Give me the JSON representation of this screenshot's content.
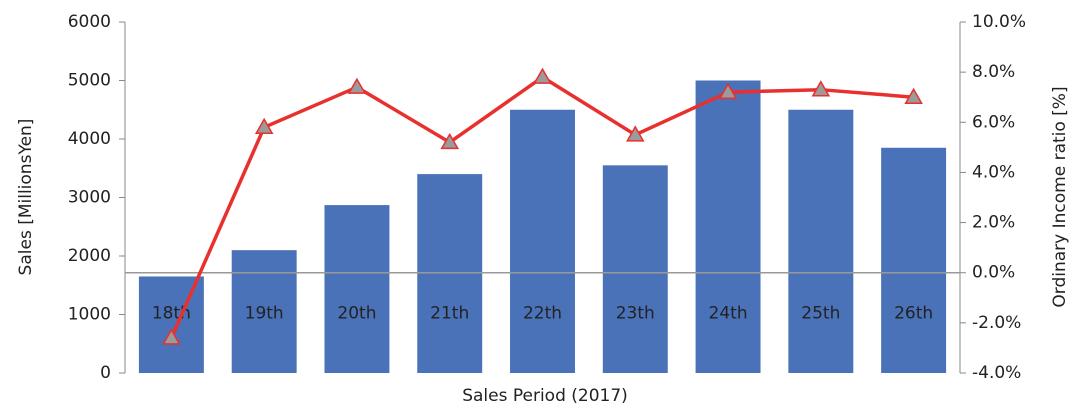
{
  "chart_data": {
    "type": "bar",
    "x_label": "Sales Period (2017)",
    "y_label": "Sales [MillionsYen]",
    "y2_label": "Ordinary Income ratio [%]",
    "categories": [
      "18th",
      "19th",
      "20th",
      "21th",
      "22th",
      "23th",
      "24th",
      "25th",
      "26th"
    ],
    "series": [
      {
        "type": "bar",
        "color": "#4a72b8",
        "values": [
          1650,
          2100,
          2870,
          3400,
          4500,
          3550,
          5000,
          4500,
          3850
        ]
      },
      {
        "type": "line",
        "axis": "y2",
        "color": "#e8302e",
        "marker_color": "#9b9b9b",
        "values": [
          -2.6,
          5.8,
          7.4,
          5.2,
          7.8,
          5.5,
          7.2,
          7.3,
          7.0
        ]
      }
    ],
    "ylim": [
      0,
      6000
    ],
    "yticks": [
      0,
      1000,
      2000,
      3000,
      4000,
      5000,
      6000
    ],
    "y2lim": [
      -4,
      10
    ],
    "y2ticks": [
      {
        "value": -4,
        "label": "-4.0%"
      },
      {
        "value": -2,
        "label": "-2.0%"
      },
      {
        "value": 0,
        "label": "0.0%"
      },
      {
        "value": 2,
        "label": "2.0%"
      },
      {
        "value": 4,
        "label": "4.0%"
      },
      {
        "value": 6,
        "label": "6.0%"
      },
      {
        "value": 8,
        "label": "8.0%"
      },
      {
        "value": 10,
        "label": "10.0%"
      }
    ]
  }
}
